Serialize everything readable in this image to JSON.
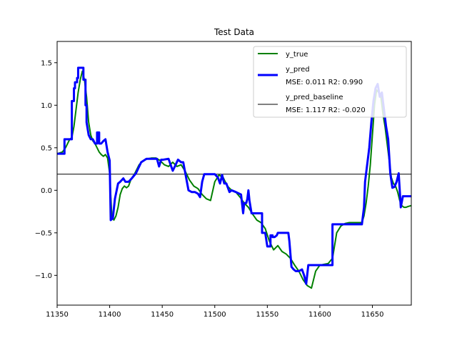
{
  "chart_data": {
    "type": "line",
    "title": "Test Data",
    "xlabel": "",
    "ylabel": "",
    "xlim": [
      11350,
      11687
    ],
    "ylim": [
      -1.35,
      1.75
    ],
    "xticks": [
      11350,
      11400,
      11450,
      11500,
      11550,
      11600,
      11650
    ],
    "yticks": [
      -1.0,
      -0.5,
      0.0,
      0.5,
      1.0,
      1.5
    ],
    "ytick_labels": [
      "−1.0",
      "−0.5",
      "0.0",
      "0.5",
      "1.0",
      "1.5"
    ],
    "grid": false,
    "legend_position": "top-right",
    "series": [
      {
        "name": "y_true",
        "label_lines": [
          "y_true"
        ],
        "color": "#008000",
        "width": 2,
        "x": [
          11350,
          11355,
          11358,
          11360,
          11362,
          11364,
          11366,
          11368,
          11370,
          11372,
          11374,
          11376,
          11378,
          11380,
          11382,
          11384,
          11386,
          11388,
          11390,
          11392,
          11394,
          11396,
          11398,
          11400,
          11402,
          11404,
          11406,
          11408,
          11410,
          11412,
          11414,
          11416,
          11418,
          11420,
          11424,
          11428,
          11432,
          11436,
          11440,
          11444,
          11448,
          11452,
          11456,
          11460,
          11464,
          11468,
          11472,
          11476,
          11480,
          11484,
          11488,
          11492,
          11496,
          11500,
          11504,
          11508,
          11512,
          11516,
          11520,
          11524,
          11528,
          11532,
          11536,
          11540,
          11544,
          11548,
          11552,
          11556,
          11560,
          11564,
          11568,
          11572,
          11576,
          11580,
          11584,
          11588,
          11592,
          11596,
          11600,
          11604,
          11608,
          11612,
          11616,
          11620,
          11624,
          11628,
          11632,
          11636,
          11640,
          11642,
          11644,
          11646,
          11648,
          11650,
          11652,
          11654,
          11656,
          11658,
          11660,
          11662,
          11664,
          11666,
          11668,
          11670,
          11672,
          11674,
          11676,
          11678,
          11680,
          11682,
          11684,
          11687
        ],
        "y": [
          0.43,
          0.45,
          0.5,
          0.55,
          0.6,
          0.62,
          0.75,
          0.95,
          1.15,
          1.3,
          1.4,
          1.3,
          1.1,
          0.8,
          0.65,
          0.58,
          0.55,
          0.5,
          0.45,
          0.42,
          0.4,
          0.42,
          0.38,
          0.2,
          -0.3,
          -0.35,
          -0.3,
          -0.2,
          -0.05,
          0.02,
          0.05,
          0.03,
          0.05,
          0.12,
          0.2,
          0.3,
          0.35,
          0.37,
          0.38,
          0.38,
          0.35,
          0.3,
          0.28,
          0.33,
          0.28,
          0.3,
          0.22,
          0.12,
          0.05,
          0.02,
          -0.05,
          -0.1,
          -0.12,
          0.1,
          0.18,
          0.15,
          0.05,
          0.0,
          -0.02,
          -0.08,
          -0.15,
          -0.2,
          -0.28,
          -0.35,
          -0.38,
          -0.45,
          -0.6,
          -0.7,
          -0.65,
          -0.72,
          -0.75,
          -0.8,
          -0.88,
          -0.95,
          -1.05,
          -1.12,
          -1.15,
          -0.95,
          -0.88,
          -0.87,
          -0.86,
          -0.8,
          -0.5,
          -0.42,
          -0.39,
          -0.38,
          -0.38,
          -0.38,
          -0.38,
          -0.3,
          -0.15,
          0.05,
          0.3,
          0.65,
          1.0,
          1.18,
          1.15,
          1.1,
          0.9,
          0.75,
          0.55,
          0.35,
          0.15,
          0.08,
          0.05,
          -0.02,
          -0.12,
          -0.18,
          -0.2,
          -0.2,
          -0.19,
          -0.18
        ]
      },
      {
        "name": "y_pred",
        "label_lines": [
          "y_pred",
          " MSE: 0.011 R2: 0.990"
        ],
        "color": "#0000ff",
        "width": 3,
        "x": [
          11350,
          11357,
          11357,
          11364,
          11364,
          11366,
          11366,
          11367,
          11367,
          11369,
          11369,
          11370,
          11370,
          11375,
          11375,
          11377,
          11377,
          11378,
          11378,
          11380,
          11382,
          11384,
          11386,
          11388,
          11388,
          11390,
          11390,
          11392,
          11394,
          11396,
          11398,
          11400,
          11401,
          11403,
          11405,
          11408,
          11410,
          11413,
          11415,
          11418,
          11421,
          11425,
          11430,
          11435,
          11440,
          11445,
          11447,
          11449,
          11451,
          11456,
          11458,
          11460,
          11462,
          11465,
          11468,
          11470,
          11475,
          11478,
          11481,
          11484,
          11486,
          11488,
          11490,
          11495,
          11500,
          11503,
          11505,
          11507,
          11509,
          11511,
          11514,
          11516,
          11520,
          11525,
          11527,
          11528,
          11530,
          11531,
          11532,
          11533,
          11535,
          11535,
          11545,
          11545,
          11548,
          11550,
          11553,
          11553,
          11555,
          11555,
          11557,
          11559,
          11560,
          11570,
          11571,
          11573,
          11575,
          11577,
          11580,
          11583,
          11585,
          11587,
          11589,
          11612,
          11612,
          11640,
          11640,
          11642,
          11643,
          11645,
          11647,
          11649,
          11651,
          11653,
          11655,
          11657,
          11659,
          11661,
          11663,
          11665,
          11667,
          11669,
          11671,
          11673,
          11675,
          11677,
          11679,
          11681,
          11683,
          11685,
          11687
        ],
        "y": [
          0.43,
          0.43,
          0.6,
          0.6,
          1.05,
          1.05,
          1.2,
          1.2,
          1.27,
          1.27,
          1.32,
          1.32,
          1.44,
          1.44,
          1.3,
          1.3,
          1.0,
          1.0,
          0.8,
          0.65,
          0.6,
          0.6,
          0.55,
          0.55,
          0.68,
          0.68,
          0.55,
          0.55,
          0.58,
          0.6,
          0.45,
          0.35,
          -0.35,
          -0.33,
          -0.1,
          0.08,
          0.1,
          0.14,
          0.1,
          0.1,
          0.14,
          0.2,
          0.33,
          0.37,
          0.37,
          0.37,
          0.28,
          0.36,
          0.36,
          0.37,
          0.3,
          0.23,
          0.28,
          0.36,
          0.33,
          0.33,
          0.0,
          -0.02,
          -0.02,
          -0.04,
          -0.08,
          0.1,
          0.19,
          0.19,
          0.19,
          0.15,
          0.08,
          0.18,
          0.08,
          0.08,
          -0.02,
          0.0,
          -0.02,
          -0.05,
          -0.27,
          -0.15,
          -0.15,
          -0.1,
          0.0,
          -0.12,
          -0.27,
          -0.27,
          -0.27,
          -0.5,
          -0.5,
          -0.66,
          -0.66,
          -0.53,
          -0.53,
          -0.55,
          -0.55,
          -0.53,
          -0.5,
          -0.5,
          -0.6,
          -0.9,
          -0.93,
          -0.95,
          -0.95,
          -0.93,
          -1.0,
          -1.1,
          -0.88,
          -0.88,
          -0.4,
          -0.4,
          -0.4,
          -0.2,
          0.1,
          0.3,
          0.5,
          0.8,
          1.05,
          1.2,
          1.25,
          1.1,
          1.15,
          0.95,
          0.75,
          0.6,
          0.2,
          0.03,
          0.04,
          0.1,
          0.2,
          -0.2,
          -0.07,
          -0.07,
          -0.07,
          -0.07,
          -0.07
        ]
      },
      {
        "name": "y_pred_baseline",
        "label_lines": [
          "y_pred_baseline",
          " MSE: 1.117 R2: -0.020"
        ],
        "color": "#000000",
        "width": 1,
        "x": [
          11350,
          11687
        ],
        "y": [
          0.19,
          0.19
        ]
      }
    ]
  }
}
